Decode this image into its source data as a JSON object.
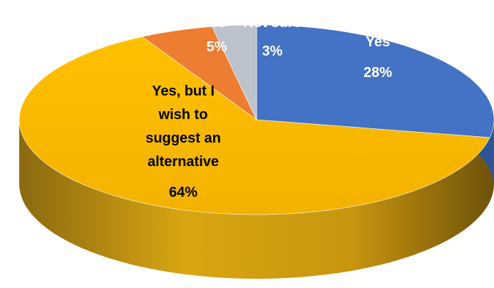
{
  "chart_data": {
    "type": "pie",
    "title": "",
    "series": [
      {
        "label_line1": "Yes",
        "value": 28,
        "value_text": "28%",
        "color": "#4472C4",
        "side_color": "#2F5597",
        "label_color": "#ffffff"
      },
      {
        "label_lines": [
          "Yes, but I",
          "wish to",
          "suggest an",
          "alternative"
        ],
        "value": 64,
        "value_text": "64%",
        "color": "#FFC000",
        "side_color": "#B8860B",
        "label_color": "#000000"
      },
      {
        "label_line1": "No",
        "value": 5,
        "value_text": "5%",
        "color": "#ED7D31",
        "side_color": "#B55A1E",
        "label_color": "#ffffff"
      },
      {
        "label_line1": "Not sure",
        "value": 3,
        "value_text": "3%",
        "color": "#BDC3CC",
        "side_color": "#8E949C",
        "label_color": "#ffffff"
      }
    ]
  }
}
